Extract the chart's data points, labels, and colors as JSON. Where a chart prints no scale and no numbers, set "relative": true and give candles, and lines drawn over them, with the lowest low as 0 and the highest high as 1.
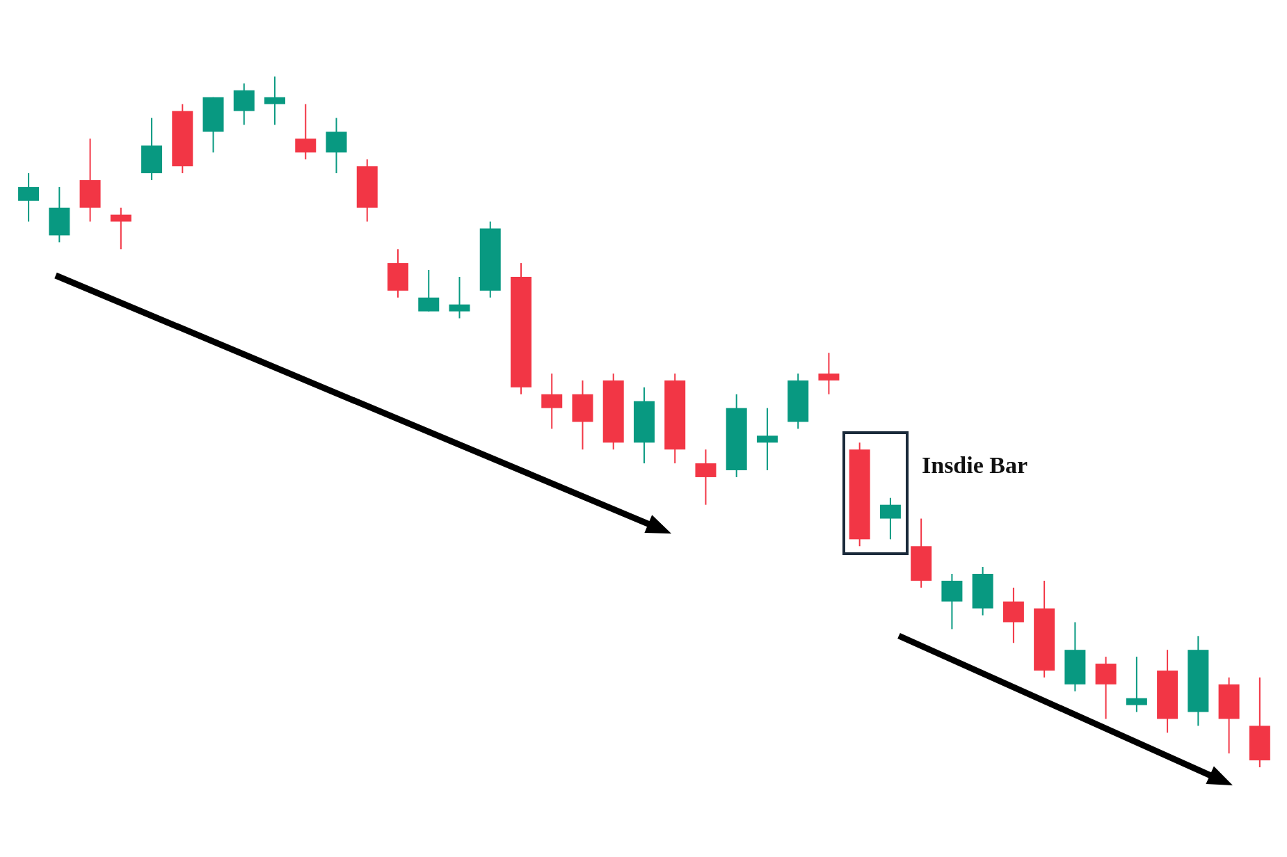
{
  "chart_data": {
    "type": "candlestick",
    "relative": true,
    "categories": [
      null,
      null,
      null,
      null,
      null,
      null,
      null,
      null,
      null,
      null,
      null,
      null,
      null,
      null,
      null,
      null,
      null,
      null,
      null,
      null,
      null,
      null,
      null,
      null,
      null,
      null,
      null,
      null,
      null,
      null,
      null,
      null,
      null,
      null,
      null,
      null,
      null,
      null,
      null,
      null,
      null
    ],
    "ohlc": [
      [
        0.82,
        0.86,
        0.79,
        0.84
      ],
      [
        0.77,
        0.84,
        0.76,
        0.81
      ],
      [
        0.85,
        0.91,
        0.79,
        0.81
      ],
      [
        0.8,
        0.81,
        0.75,
        0.79
      ],
      [
        0.86,
        0.94,
        0.85,
        0.9
      ],
      [
        0.95,
        0.96,
        0.86,
        0.87
      ],
      [
        0.92,
        0.97,
        0.89,
        0.97
      ],
      [
        0.95,
        0.99,
        0.93,
        0.98
      ],
      [
        0.96,
        1,
        0.93,
        0.97
      ],
      [
        0.91,
        0.96,
        0.88,
        0.89
      ],
      [
        0.89,
        0.94,
        0.86,
        0.92
      ],
      [
        0.87,
        0.88,
        0.79,
        0.81
      ],
      [
        0.73,
        0.75,
        0.68,
        0.69
      ],
      [
        0.66,
        0.72,
        0.66,
        0.68
      ],
      [
        0.66,
        0.71,
        0.65,
        0.67
      ],
      [
        0.69,
        0.79,
        0.68,
        0.78
      ],
      [
        0.71,
        0.73,
        0.54,
        0.55
      ],
      [
        0.54,
        0.57,
        0.49,
        0.52
      ],
      [
        0.54,
        0.56,
        0.46,
        0.5
      ],
      [
        0.56,
        0.57,
        0.46,
        0.47
      ],
      [
        0.47,
        0.55,
        0.44,
        0.53
      ],
      [
        0.56,
        0.57,
        0.44,
        0.46
      ],
      [
        0.44,
        0.46,
        0.38,
        0.42
      ],
      [
        0.43,
        0.54,
        0.42,
        0.52
      ],
      [
        0.47,
        0.52,
        0.43,
        0.48
      ],
      [
        0.5,
        0.57,
        0.49,
        0.56
      ],
      [
        0.57,
        0.6,
        0.54,
        0.56
      ],
      [
        0.46,
        0.47,
        0.32,
        0.33
      ],
      [
        0.36,
        0.39,
        0.33,
        0.38
      ],
      [
        0.32,
        0.36,
        0.26,
        0.27
      ],
      [
        0.24,
        0.28,
        0.2,
        0.27
      ],
      [
        0.23,
        0.29,
        0.22,
        0.28
      ],
      [
        0.24,
        0.26,
        0.18,
        0.21
      ],
      [
        0.23,
        0.27,
        0.13,
        0.14
      ],
      [
        0.12,
        0.21,
        0.11,
        0.17
      ],
      [
        0.15,
        0.16,
        0.07,
        0.12
      ],
      [
        0.09,
        0.16,
        0.08,
        0.1
      ],
      [
        0.14,
        0.17,
        0.05,
        0.07
      ],
      [
        0.08,
        0.19,
        0.06,
        0.17
      ],
      [
        0.12,
        0.13,
        0.02,
        0.07
      ],
      [
        0.06,
        0.13,
        0,
        0.01
      ]
    ],
    "colors": [
      "#089981",
      "#089981",
      "#f23645",
      "#f23645",
      "#089981",
      "#f23645",
      "#089981",
      "#089981",
      "#089981",
      "#f23645",
      "#089981",
      "#f23645",
      "#f23645",
      "#089981",
      "#089981",
      "#089981",
      "#f23645",
      "#f23645",
      "#f23645",
      "#f23645",
      "#089981",
      "#f23645",
      "#f23645",
      "#089981",
      "#089981",
      "#089981",
      "#f23645",
      "#f23645",
      "#089981",
      "#f23645",
      "#089981",
      "#089981",
      "#f23645",
      "#f23645",
      "#089981",
      "#f23645",
      "#089981",
      "#f23645",
      "#089981",
      "#f23645",
      "#f23645"
    ],
    "annotations": [
      "Insdie Bar"
    ]
  }
}
